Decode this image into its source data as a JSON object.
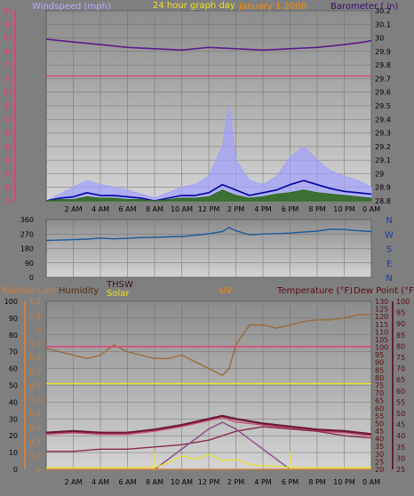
{
  "colors": {
    "background": "#7f7f7f",
    "plot_gradient_top": "#8c8c8c",
    "plot_gradient_bottom": "#d4d4d4",
    "grid": "#6f6f6f"
  },
  "chart_data": [
    {
      "type": "line",
      "panel": "top",
      "labels": {
        "windspeed": "Windspeed (mph)",
        "center": "24 hour graph day",
        "date": "January 1 2008",
        "barometer": "Barometer (.in)"
      },
      "x_ticks": [
        "2 AM",
        "4 AM",
        "6 AM",
        "8 AM",
        "10 AM",
        "12 PM",
        "2 PM",
        "4 PM",
        "6 PM",
        "8 PM",
        "10 PM",
        "0 AM"
      ],
      "left_axis": {
        "ticks": [
          "25",
          "30",
          "35",
          "40",
          "45",
          "50",
          "55",
          "60",
          "65",
          "70",
          "75",
          "80",
          "85",
          "90",
          "95"
        ],
        "range": [
          25,
          95
        ]
      },
      "right_axis": {
        "ticks": [
          "28.8",
          "28.9",
          "29",
          "29.1",
          "29.2",
          "29.3",
          "29.4",
          "29.5",
          "29.6",
          "29.7",
          "29.8",
          "29.9",
          "30",
          "30.1",
          "30.2"
        ],
        "range": [
          28.8,
          30.2
        ]
      },
      "series": [
        {
          "key": "barometer",
          "color": "#5a1a8c",
          "x": [
            0,
            2,
            4,
            6,
            8,
            10,
            12,
            14,
            16,
            18,
            20,
            22,
            23.5,
            24
          ],
          "values": [
            29.99,
            29.97,
            29.95,
            29.93,
            29.92,
            29.91,
            29.93,
            29.92,
            29.91,
            29.92,
            29.93,
            29.95,
            29.97,
            29.98
          ]
        },
        {
          "key": "windchill_flat",
          "color": "#e0407a",
          "x": [
            0,
            24
          ],
          "values": [
            29.72,
            29.72
          ]
        },
        {
          "key": "gust",
          "color": "#a0a0ff",
          "x": [
            0,
            1,
            2,
            3,
            4,
            5,
            6,
            7,
            8,
            9,
            10,
            11,
            12,
            13,
            13.5,
            14,
            15,
            16,
            17,
            18,
            19,
            20,
            21,
            22,
            23,
            24
          ],
          "values": [
            28.8,
            28.85,
            28.9,
            28.95,
            28.92,
            28.9,
            28.88,
            28.85,
            28.82,
            28.86,
            28.9,
            28.92,
            28.98,
            29.2,
            29.5,
            29.1,
            28.95,
            28.92,
            28.98,
            29.12,
            29.2,
            29.1,
            29.02,
            28.98,
            28.95,
            28.9
          ]
        },
        {
          "key": "wind_avg",
          "color": "#0000a0",
          "x": [
            0,
            1,
            2,
            3,
            4,
            5,
            6,
            7,
            8,
            9,
            10,
            11,
            12,
            13,
            14,
            15,
            16,
            17,
            18,
            19,
            20,
            21,
            22,
            23,
            24
          ],
          "values": [
            28.8,
            28.82,
            28.83,
            28.86,
            28.84,
            28.84,
            28.83,
            28.82,
            28.8,
            28.82,
            28.84,
            28.84,
            28.86,
            28.92,
            28.88,
            28.84,
            28.86,
            28.88,
            28.92,
            28.95,
            28.92,
            28.89,
            28.87,
            28.86,
            28.85
          ]
        },
        {
          "key": "wind_fill",
          "color": "#2e6a1e",
          "x": [
            0,
            1,
            2,
            3,
            4,
            5,
            6,
            7,
            8,
            9,
            10,
            11,
            12,
            13,
            14,
            15,
            16,
            17,
            18,
            19,
            20,
            21,
            22,
            23,
            24
          ],
          "values": [
            28.8,
            28.81,
            28.81,
            28.83,
            28.82,
            28.82,
            28.81,
            28.81,
            28.8,
            28.81,
            28.82,
            28.82,
            28.83,
            28.88,
            28.84,
            28.82,
            28.83,
            28.85,
            28.86,
            28.88,
            28.86,
            28.85,
            28.84,
            28.83,
            28.82
          ]
        }
      ]
    },
    {
      "type": "line",
      "panel": "direction",
      "x_ticks": [],
      "left_axis": {
        "ticks": [
          "0",
          "90",
          "180",
          "270",
          "360"
        ],
        "range": [
          0,
          360
        ]
      },
      "right_labels": [
        "N",
        "W",
        "S",
        "E",
        "N"
      ],
      "series": [
        {
          "key": "direction",
          "color": "#1a5a9a",
          "x": [
            0,
            1,
            2,
            3,
            4,
            5,
            6,
            7,
            8,
            9,
            10,
            11,
            12,
            13,
            13.5,
            14,
            15,
            16,
            17,
            18,
            19,
            20,
            21,
            22,
            23,
            24
          ],
          "values": [
            230,
            232,
            235,
            238,
            245,
            240,
            243,
            248,
            250,
            252,
            255,
            262,
            272,
            285,
            310,
            290,
            265,
            270,
            272,
            276,
            282,
            288,
            300,
            298,
            290,
            285
          ]
        }
      ]
    },
    {
      "type": "line",
      "panel": "bottom",
      "labels": {
        "rainfall": "Rainfall (.in)",
        "humidity": "Humidity",
        "thsw": "THSW",
        "solar": "Solar",
        "uv": "UV",
        "temperature": "Temperature (°F)",
        "dew_point": "Dew Point (°F)"
      },
      "x_ticks": [
        "2 AM",
        "4 AM",
        "6 AM",
        "8 AM",
        "10 AM",
        "12 PM",
        "2 PM",
        "4 PM",
        "6 PM",
        "8 PM",
        "10 PM",
        "0 AM"
      ],
      "axes": {
        "humidity": {
          "ticks": [
            "0",
            "10",
            "20",
            "30",
            "40",
            "50",
            "60",
            "70",
            "80",
            "90",
            "100"
          ],
          "range": [
            0,
            100
          ]
        },
        "rainfall": {
          "ticks": [
            "0",
            "0.1",
            "0.2",
            "0.3",
            "0.4",
            "0.5",
            "0.6",
            "0.7",
            "0.8",
            "0.9",
            "1",
            "1.1",
            "1.2"
          ],
          "range": [
            0,
            1.2
          ]
        },
        "temperature": {
          "ticks": [
            "20",
            "25",
            "30",
            "35",
            "40",
            "45",
            "50",
            "55",
            "60",
            "65",
            "70",
            "75",
            "80",
            "85",
            "90",
            "95",
            "100",
            "105",
            "110",
            "115",
            "120",
            "125",
            "130"
          ],
          "range": [
            20,
            130
          ]
        },
        "dew_point": {
          "ticks": [
            "25",
            "30",
            "35",
            "40",
            "45",
            "50",
            "55",
            "60",
            "65",
            "70",
            "75",
            "80",
            "85",
            "90",
            "95",
            "100"
          ],
          "range": [
            25,
            100
          ]
        }
      },
      "series": [
        {
          "key": "humidity",
          "color": "#9a6a3a",
          "axis": "humidity",
          "x": [
            0,
            1,
            2,
            3,
            4,
            5,
            6,
            7,
            8,
            9,
            10,
            11,
            12,
            13,
            13.5,
            14,
            15,
            16,
            17,
            18,
            19,
            20,
            21,
            22,
            23,
            24
          ],
          "values": [
            72,
            70,
            68,
            66,
            68,
            74,
            70,
            68,
            66,
            66,
            68,
            64,
            60,
            56,
            60,
            74,
            86,
            86,
            84,
            86,
            88,
            89,
            89,
            90,
            92,
            92
          ]
        },
        {
          "key": "windchill",
          "color": "#e0407a",
          "axis": "humidity",
          "x": [
            0,
            24
          ],
          "values": [
            73,
            73
          ]
        },
        {
          "key": "flat_yellow",
          "color": "#f0e020",
          "axis": "humidity",
          "x": [
            0,
            24
          ],
          "values": [
            51,
            51
          ]
        },
        {
          "key": "temperature",
          "color": "#6a1a3a",
          "axis": "temperature",
          "x": [
            0,
            2,
            4,
            6,
            8,
            10,
            12,
            13,
            14,
            16,
            18,
            20,
            22,
            24
          ],
          "values": [
            44,
            45,
            44,
            44,
            46,
            49,
            53,
            55,
            53,
            50,
            48,
            46,
            45,
            43
          ]
        },
        {
          "key": "thsw",
          "color": "#c84a6a",
          "axis": "temperature",
          "x": [
            0,
            2,
            4,
            6,
            8,
            10,
            12,
            13,
            14,
            16,
            18,
            20,
            22,
            24
          ],
          "values": [
            43,
            44,
            43,
            43,
            45,
            48,
            52,
            54,
            51,
            49,
            47,
            45,
            44,
            42
          ]
        },
        {
          "key": "dew_point",
          "color": "#8a2a4a",
          "axis": "dew_point",
          "x": [
            0,
            2,
            4,
            6,
            8,
            10,
            12,
            14,
            16,
            18,
            20,
            22,
            24
          ],
          "values": [
            33,
            33,
            34,
            34,
            35,
            36,
            38,
            42,
            44,
            43,
            42,
            40,
            39
          ]
        },
        {
          "key": "uv",
          "color": "#8a4a8a",
          "axis": "humidity",
          "x": [
            8,
            9,
            10,
            11,
            12,
            13,
            14,
            15,
            16,
            17,
            18
          ],
          "values": [
            0,
            6,
            12,
            18,
            24,
            28,
            24,
            18,
            12,
            6,
            0
          ]
        },
        {
          "key": "solar",
          "color": "#f0e020",
          "axis": "humidity",
          "x": [
            0,
            8,
            9,
            10,
            11,
            12,
            13,
            14,
            15,
            16,
            17,
            18,
            24
          ],
          "values": [
            1,
            1,
            4,
            8,
            6,
            9,
            5,
            6,
            3,
            2,
            2,
            1,
            1
          ]
        },
        {
          "key": "rain",
          "color": "#d08040",
          "axis": "humidity",
          "x": [
            0,
            24
          ],
          "values": [
            0,
            0
          ]
        }
      ]
    }
  ]
}
